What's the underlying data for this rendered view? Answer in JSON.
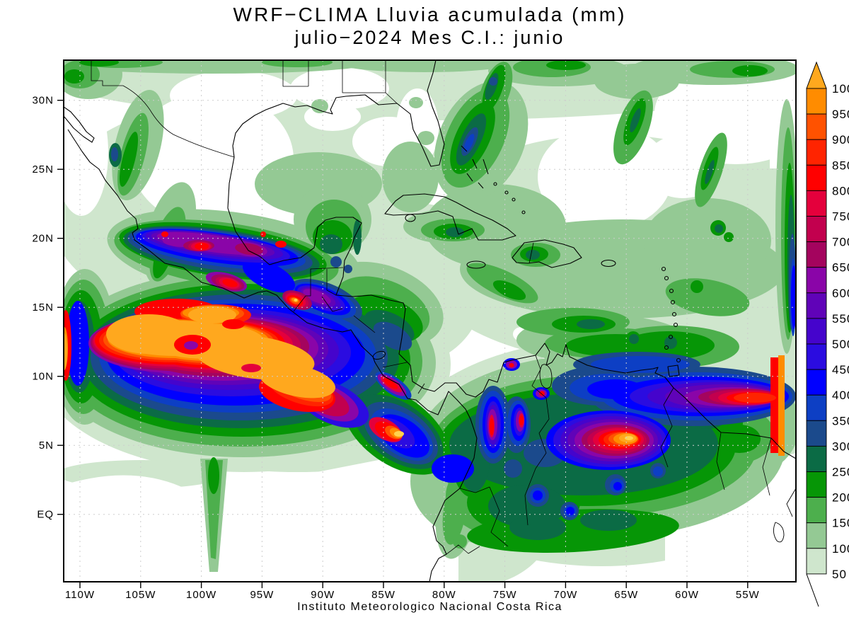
{
  "title": {
    "line1": "WRF−CLIMA Lluvia acumulada (mm)",
    "line2": "julio−2024 Mes C.I.: junio"
  },
  "caption": "Instituto Meteorologico Nacional Costa Rica",
  "axes": {
    "lat_ticks": [
      "30N",
      "25N",
      "20N",
      "15N",
      "10N",
      "5N",
      "EQ"
    ],
    "lon_ticks": [
      "110W",
      "105W",
      "100W",
      "95W",
      "90W",
      "85W",
      "80W",
      "75W",
      "70W",
      "65W",
      "60W",
      "55W"
    ]
  },
  "colorbar": {
    "labels_top_to_bottom": [
      "1000",
      "950",
      "900",
      "850",
      "800",
      "750",
      "700",
      "650",
      "600",
      "550",
      "500",
      "450",
      "400",
      "350",
      "300",
      "250",
      "200",
      "150",
      "100",
      "50"
    ],
    "colors_top_to_bottom": [
      "#ff8c00",
      "#ff5200",
      "#ff2400",
      "#ff0000",
      "#e4003c",
      "#c2004e",
      "#a4045e",
      "#8a05a8",
      "#6003b8",
      "#4504cc",
      "#2b0ce0",
      "#0000ff",
      "#0d3fc4",
      "#1b4a8c",
      "#0b6b45",
      "#069606",
      "#4daf4d",
      "#94c994",
      "#cfe6cd"
    ],
    "arrow_color": "#ffa81e",
    "units": "mm"
  },
  "chart_data": {
    "type": "heatmap",
    "subtype": "filled_contour_map",
    "title": "WRF−CLIMA Lluvia acumulada (mm)",
    "subtitle": "julio−2024 Mes C.I.: junio",
    "variable": "accumulated rainfall (mm), monthly forecast",
    "model": "WRF-CLIMA",
    "forecast_month": "julio 2024",
    "initial_condition_month": "junio",
    "source": "Instituto Meteorologico Nacional Costa Rica",
    "lon_range_deg_west": [
      111.4,
      51.0
    ],
    "lat_range_deg": [
      -4.9,
      32.9
    ],
    "grid_spacing_deg": 5,
    "grid": "dashed graticule every 5 degrees",
    "legend_position": "right vertical colorbar with top arrow (>1000 mm)",
    "contour_levels_mm": [
      50,
      100,
      150,
      200,
      250,
      300,
      350,
      400,
      450,
      500,
      550,
      600,
      650,
      700,
      750,
      800,
      850,
      900,
      950,
      1000
    ],
    "palette_low_to_high": [
      "#cfe6cd",
      "#94c994",
      "#4daf4d",
      "#069606",
      "#0b6b45",
      "#1b4a8c",
      "#0d3fc4",
      "#0000ff",
      "#2b0ce0",
      "#4504cc",
      "#6003b8",
      "#8a05a8",
      "#a4045e",
      "#c2004e",
      "#e4003c",
      "#ff0000",
      "#ff2400",
      "#ff5200",
      "#ff8c00",
      "#ffa81e"
    ],
    "maxima_features": [
      {
        "name": "Eastern Pacific ITCZ core",
        "approx_location": "8N-15N, 88W-111W",
        "value_mm": "> 1000"
      },
      {
        "name": "Pacific coast Guatemala / Chiapas spot",
        "approx_location": "14.5N, 92W",
        "value_mm": "> 950"
      },
      {
        "name": "Sierra Madre del Sur / central Mexico band",
        "approx_location": "17N-21N, 95W-106W",
        "value_mm": "600 - 950 cores"
      },
      {
        "name": "Caribbean coast Costa Rica / Panama tail",
        "approx_location": "9N-10N, 82W-84W",
        "value_mm": "750 - 1000"
      },
      {
        "name": "Colombian Andes streaks",
        "approx_location": "4N-8N, 73W-76W",
        "value_mm": "700 - 800"
      },
      {
        "name": "Southern Venezuela / Guiana highlands core",
        "approx_location": "5N-7N, 62W-65W",
        "value_mm": "> 1000"
      },
      {
        "name": "Atlantic ITCZ band",
        "approx_location": "6N-10N, east of 62W",
        "value_mm": "400 - 800, > 950 at right edge"
      },
      {
        "name": "Bahamas - west Atlantic streak",
        "approx_location": "22N-28N, 72W-78W",
        "value_mm": "250 - 400"
      }
    ],
    "dry_features": [
      {
        "name": "SE Pacific south of ITCZ",
        "approx_location": "south of 4N, west of 80W",
        "value_mm": "< 50"
      },
      {
        "name": "Subtropical NW Atlantic",
        "approx_location": "NE corner, north of 25N east of 65W",
        "value_mm": "< 50"
      },
      {
        "name": "Northern Mexico plateau / Texas",
        "approx_location": "24N-31N, 98W-106W",
        "value_mm": "< 50"
      }
    ]
  }
}
